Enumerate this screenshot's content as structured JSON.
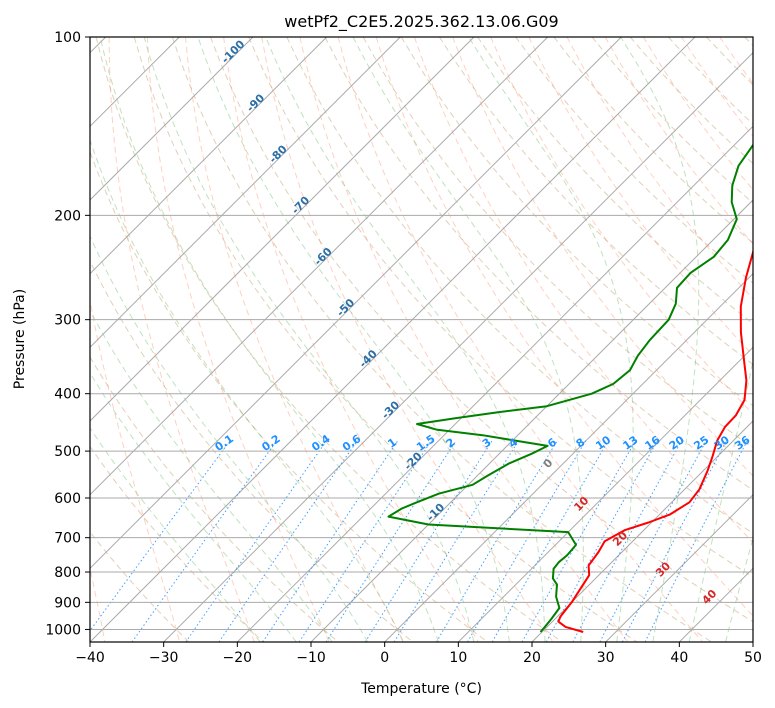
{
  "chart_data": {
    "type": "line",
    "title": "wetPf2_C2E5.2025.362.13.06.G09",
    "xlabel": "Temperature (°C)",
    "ylabel": "Pressure (hPa)",
    "xlim": [
      -40,
      50
    ],
    "ylim": [
      1050,
      100
    ],
    "x_ticks": [
      -40,
      -30,
      -20,
      -10,
      0,
      10,
      20,
      30,
      40,
      50
    ],
    "y_ticks": [
      100,
      200,
      300,
      400,
      500,
      600,
      700,
      800,
      900,
      1000
    ],
    "dry_adiabat_labels": [
      "-100",
      "-90",
      "-80",
      "-70",
      "-60",
      "-50",
      "-40",
      "-30",
      "-20",
      "-10"
    ],
    "mixing_ratio_labels": [
      "0.1",
      "0.2",
      "0.4",
      "0.6",
      "1",
      "1.5",
      "2",
      "3",
      "4",
      "6",
      "8",
      "10",
      "13",
      "16",
      "20",
      "25",
      "30",
      "36"
    ],
    "moist_adiabat_labels": [
      "0",
      "10",
      "20",
      "30",
      "40"
    ],
    "series": [
      {
        "name": "Temperature",
        "color": "#ff0000",
        "points": [
          [
            25.6,
            1010
          ],
          [
            22.5,
            990
          ],
          [
            20.8,
            970
          ],
          [
            20.4,
            950
          ],
          [
            20.0,
            900
          ],
          [
            19.3,
            850
          ],
          [
            18.7,
            810
          ],
          [
            17.3,
            780
          ],
          [
            16.8,
            740
          ],
          [
            16.2,
            710
          ],
          [
            17.4,
            680
          ],
          [
            19.6,
            660
          ],
          [
            21.4,
            640
          ],
          [
            22.4,
            610
          ],
          [
            22.0,
            580
          ],
          [
            20.6,
            540
          ],
          [
            19.3,
            510
          ],
          [
            17.8,
            480
          ],
          [
            17.0,
            455
          ],
          [
            16.9,
            435
          ],
          [
            16.0,
            410
          ],
          [
            13.6,
            380
          ],
          [
            10.4,
            350
          ],
          [
            6.3,
            315
          ],
          [
            2.8,
            285
          ],
          [
            -0.4,
            255
          ],
          [
            -3.0,
            230
          ],
          [
            -4.7,
            210
          ],
          [
            -6.0,
            195
          ],
          [
            -6.8,
            182
          ],
          [
            -6.5,
            172
          ],
          [
            -5.0,
            165
          ],
          [
            -2.6,
            158
          ],
          [
            -0.9,
            151
          ],
          [
            0.1,
            145
          ],
          [
            0.4,
            140
          ],
          [
            0.0,
            135
          ],
          [
            -0.8,
            128
          ],
          [
            -0.8,
            122
          ],
          [
            -0.1,
            116
          ],
          [
            1.0,
            110
          ],
          [
            2.8,
            104
          ],
          [
            3.8,
            100
          ]
        ]
      },
      {
        "name": "Dewpoint",
        "color": "#008000",
        "points": [
          [
            19.8,
            1010
          ],
          [
            19.7,
            990
          ],
          [
            19.5,
            960
          ],
          [
            19.1,
            920
          ],
          [
            17.1,
            880
          ],
          [
            15.6,
            840
          ],
          [
            14.2,
            820
          ],
          [
            13.0,
            790
          ],
          [
            12.8,
            770
          ],
          [
            13.0,
            750
          ],
          [
            12.8,
            720
          ],
          [
            10.0,
            685
          ],
          [
            -10.0,
            665
          ],
          [
            -16.5,
            645
          ],
          [
            -15.8,
            625
          ],
          [
            -14.6,
            610
          ],
          [
            -12.8,
            590
          ],
          [
            -9.4,
            570
          ],
          [
            -8.6,
            550
          ],
          [
            -7.4,
            525
          ],
          [
            -5.6,
            505
          ],
          [
            -4.5,
            490
          ],
          [
            -9.6,
            480
          ],
          [
            -14.8,
            470
          ],
          [
            -21.8,
            460
          ],
          [
            -25.2,
            450
          ],
          [
            -20.8,
            440
          ],
          [
            -15.8,
            430
          ],
          [
            -10.0,
            420
          ],
          [
            -5.6,
            400
          ],
          [
            -4.0,
            385
          ],
          [
            -3.6,
            365
          ],
          [
            -4.5,
            345
          ],
          [
            -5.0,
            325
          ],
          [
            -5.2,
            300
          ],
          [
            -6.4,
            282
          ],
          [
            -8.4,
            265
          ],
          [
            -8.6,
            250
          ],
          [
            -7.6,
            235
          ],
          [
            -8.0,
            220
          ],
          [
            -9.6,
            203
          ],
          [
            -12.6,
            190
          ],
          [
            -14.8,
            178
          ],
          [
            -16.6,
            165
          ],
          [
            -17.6,
            150
          ],
          [
            -16.4,
            138
          ],
          [
            -12.0,
            125
          ],
          [
            -7.6,
            115
          ],
          [
            -4.6,
            108
          ],
          [
            -2.6,
            102
          ],
          [
            -1.6,
            100
          ]
        ]
      }
    ]
  }
}
